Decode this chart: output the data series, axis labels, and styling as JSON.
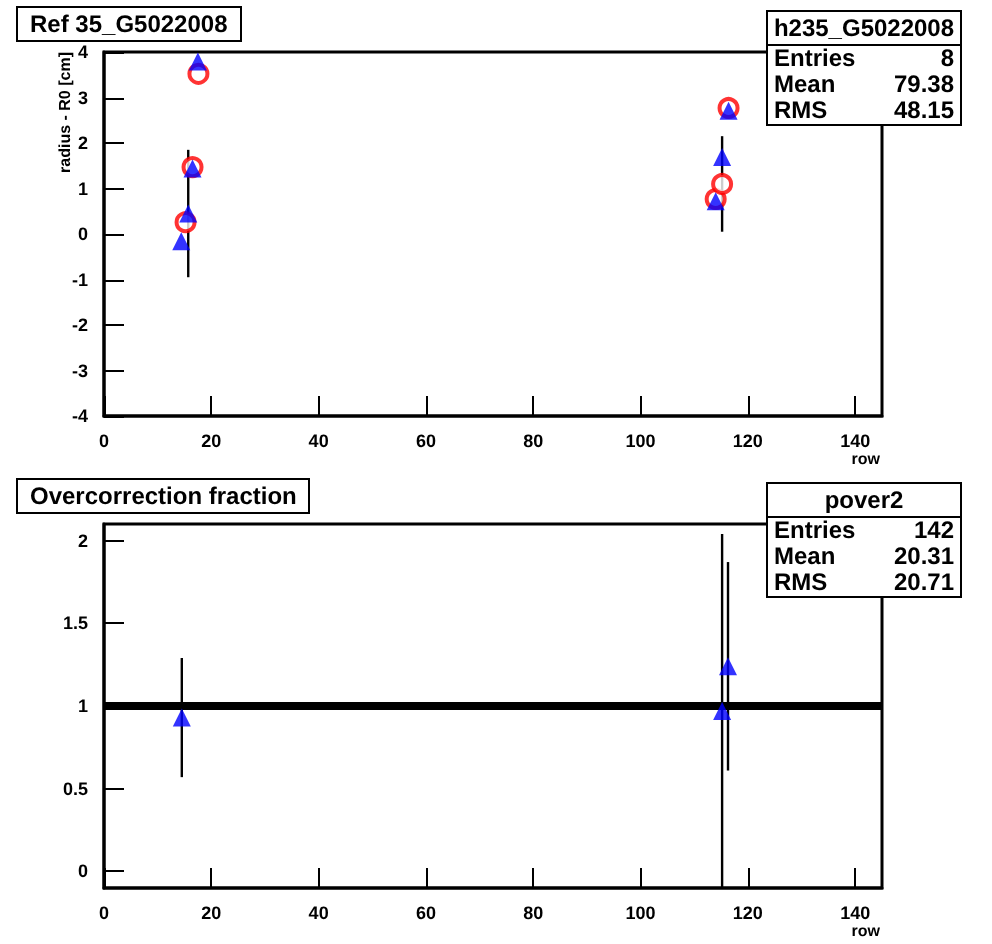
{
  "chart_data": [
    {
      "type": "scatter",
      "title": "Ref 35_G5022008",
      "xlabel": "row",
      "ylabel": "radius - R0 [cm]",
      "xlim": [
        0,
        145
      ],
      "xticks": [
        0,
        20,
        40,
        60,
        80,
        100,
        120,
        140
      ],
      "ylim": [
        -4,
        4
      ],
      "yticks": [
        -4,
        -3,
        -2,
        -1,
        0,
        1,
        2,
        3,
        4
      ],
      "grid": false,
      "annotations": [
        "h235_G5022008",
        "Entries",
        "8",
        "Mean",
        "79.38",
        "RMS",
        "48.15"
      ],
      "series": [
        {
          "color": "#0000ff",
          "marker": "triangle",
          "x": [
            14.4,
            15.7,
            16.5,
            17.5,
            114.0,
            115.2,
            116.4
          ],
          "values": [
            -0.16,
            0.45,
            1.44,
            3.79,
            0.72,
            1.69,
            2.71
          ],
          "errors": [
            null,
            1.4,
            null,
            null,
            null,
            null,
            null
          ]
        },
        {
          "color": "#ff0000",
          "marker": "circle",
          "x": [
            15.2,
            16.5,
            17.6,
            114.0,
            115.2,
            116.4
          ],
          "values": [
            0.26,
            1.47,
            3.52,
            0.77,
            1.1,
            2.77
          ],
          "errors": [
            null,
            null,
            null,
            null,
            1.05,
            null
          ]
        }
      ]
    },
    {
      "type": "scatter",
      "title": "Overcorrection fraction",
      "xlabel": "row",
      "xlim": [
        0,
        145
      ],
      "xticks": [
        0,
        20,
        40,
        60,
        80,
        100,
        120,
        140
      ],
      "ylim": [
        -0.1,
        2.1
      ],
      "yticks": [
        0,
        0.5,
        1,
        1.5,
        2
      ],
      "grid": false,
      "annotations": [
        "pover2",
        "Entries",
        "142",
        "Mean",
        "20.31",
        "RMS",
        "20.71"
      ],
      "ref_lines": [
        {
          "axis": "y",
          "value": 1,
          "color": "#000000"
        }
      ],
      "series": [
        {
          "color": "#0000ff",
          "marker": "triangle",
          "x": [
            14.5,
            115.2,
            116.3
          ],
          "values": [
            0.93,
            0.97,
            1.24
          ],
          "errors": [
            0.36,
            1.07,
            0.63
          ]
        }
      ]
    }
  ]
}
